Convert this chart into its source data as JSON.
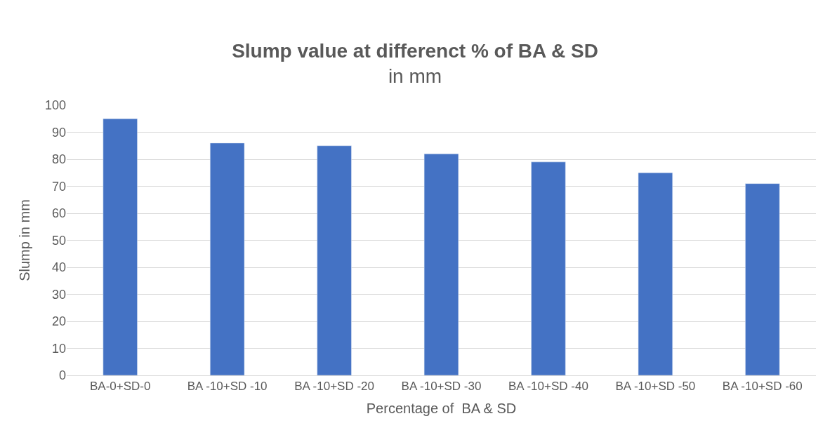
{
  "chart_data": {
    "type": "bar",
    "title": "Slump value at differenct % of BA & SD",
    "subtitle": "in mm",
    "xlabel": "Percentage of  BA & SD",
    "ylabel": "Slump in mm",
    "categories": [
      "BA-0+SD-0",
      "BA -10+SD -10",
      "BA -10+SD -20",
      "BA -10+SD -30",
      "BA -10+SD -40",
      "BA -10+SD -50",
      "BA -10+SD -60"
    ],
    "values": [
      95,
      86,
      85,
      82,
      79,
      75,
      71
    ],
    "color": "#4472c4",
    "ylim": [
      0,
      100
    ],
    "yticks": [
      0,
      10,
      20,
      30,
      40,
      50,
      60,
      70,
      80,
      90,
      100
    ],
    "grid": "y"
  }
}
